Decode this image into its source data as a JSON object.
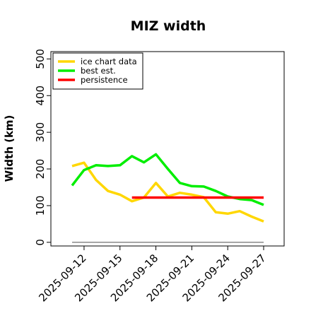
{
  "chart_data": {
    "type": "line",
    "title": "MIZ width",
    "xlabel": "",
    "ylabel": "Width (km)",
    "ylim": [
      -10,
      520
    ],
    "yticks": [
      0,
      100,
      200,
      300,
      400,
      500
    ],
    "x": [
      "2025-09-11",
      "2025-09-12",
      "2025-09-13",
      "2025-09-14",
      "2025-09-15",
      "2025-09-16",
      "2025-09-17",
      "2025-09-18",
      "2025-09-19",
      "2025-09-20",
      "2025-09-21",
      "2025-09-22",
      "2025-09-23",
      "2025-09-24",
      "2025-09-25",
      "2025-09-26",
      "2025-09-27"
    ],
    "xticks": [
      "2025-09-12",
      "2025-09-15",
      "2025-09-18",
      "2025-09-21",
      "2025-09-24",
      "2025-09-27"
    ],
    "grid": false,
    "legend_position": "top-left",
    "series": [
      {
        "name": "ice chart data",
        "color": "#FFD700",
        "x": [
          "2025-09-11",
          "2025-09-12",
          "2025-09-13",
          "2025-09-14",
          "2025-09-15",
          "2025-09-16",
          "2025-09-17",
          "2025-09-18",
          "2025-09-19",
          "2025-09-20",
          "2025-09-21",
          "2025-09-22",
          "2025-09-23",
          "2025-09-24",
          "2025-09-25",
          "2025-09-26",
          "2025-09-27"
        ],
        "values": [
          208,
          217,
          170,
          140,
          130,
          112,
          122,
          162,
          125,
          135,
          130,
          123,
          82,
          78,
          85,
          70,
          57
        ]
      },
      {
        "name": "best est.",
        "color": "#00EE00",
        "x": [
          "2025-09-11",
          "2025-09-12",
          "2025-09-13",
          "2025-09-14",
          "2025-09-15",
          "2025-09-16",
          "2025-09-17",
          "2025-09-18",
          "2025-09-19",
          "2025-09-20",
          "2025-09-21",
          "2025-09-22",
          "2025-09-23",
          "2025-09-24",
          "2025-09-25",
          "2025-09-26",
          "2025-09-27"
        ],
        "values": [
          155,
          197,
          210,
          208,
          210,
          235,
          218,
          240,
          200,
          162,
          153,
          152,
          140,
          125,
          118,
          115,
          102
        ]
      },
      {
        "name": "persistence",
        "color": "#FF0000",
        "x": [
          "2025-09-16",
          "2025-09-27"
        ],
        "values": [
          122,
          122
        ]
      },
      {
        "name": "",
        "color": "#888888",
        "x": [
          "2025-09-11",
          "2025-09-27"
        ],
        "values": [
          0,
          0
        ]
      }
    ]
  }
}
